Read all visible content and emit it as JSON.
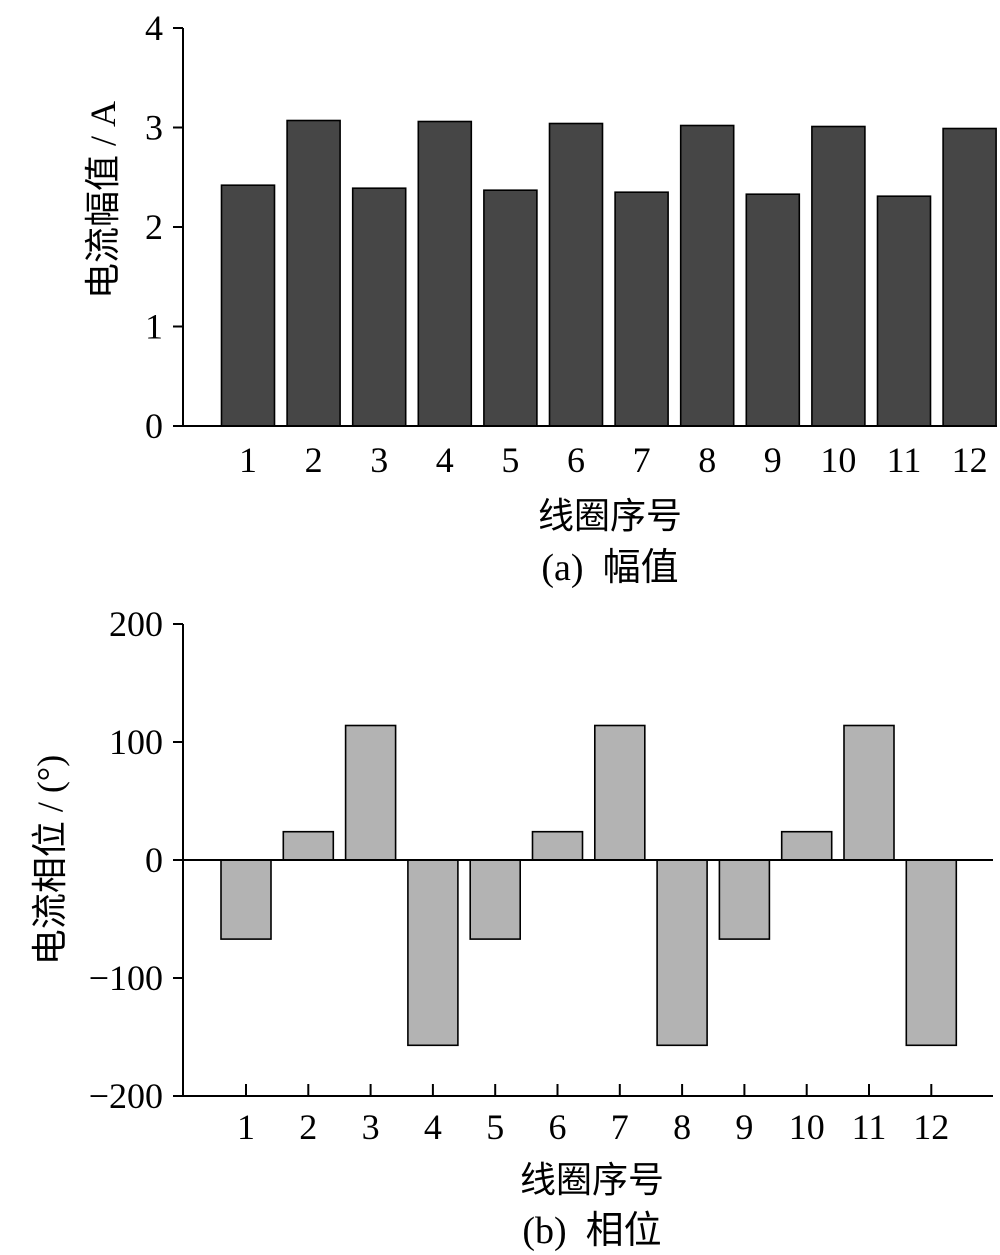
{
  "colors": {
    "amplitude_bar": "#464646",
    "phase_bar": "#b3b3b3",
    "axis": "#000000",
    "background": "#ffffff"
  },
  "chart_data": [
    {
      "type": "bar",
      "caption": "(a)  幅值",
      "xlabel": "线圈序号",
      "ylabel": "电流幅值 / A",
      "ylim": [
        0,
        4
      ],
      "yticks": [
        "0",
        "1",
        "2",
        "3",
        "4"
      ],
      "categories": [
        "1",
        "2",
        "3",
        "4",
        "5",
        "6",
        "7",
        "8",
        "9",
        "10",
        "11",
        "12"
      ],
      "values": [
        2.42,
        3.07,
        2.39,
        3.06,
        2.37,
        3.04,
        2.35,
        3.02,
        2.33,
        3.01,
        2.31,
        2.99
      ],
      "grid": false,
      "legend": "none"
    },
    {
      "type": "bar",
      "caption": "(b)  相位",
      "xlabel": "线圈序号",
      "ylabel": "电流相位 / (°)",
      "ylim": [
        -200,
        200
      ],
      "yticks": [
        "−200",
        "−100",
        "0",
        "100",
        "200"
      ],
      "categories": [
        "1",
        "2",
        "3",
        "4",
        "5",
        "6",
        "7",
        "8",
        "9",
        "10",
        "11",
        "12"
      ],
      "values": [
        -67,
        24,
        114,
        -157,
        -67,
        24,
        114,
        -157,
        -67,
        24,
        114,
        -157
      ],
      "grid": false,
      "legend": "none"
    }
  ]
}
